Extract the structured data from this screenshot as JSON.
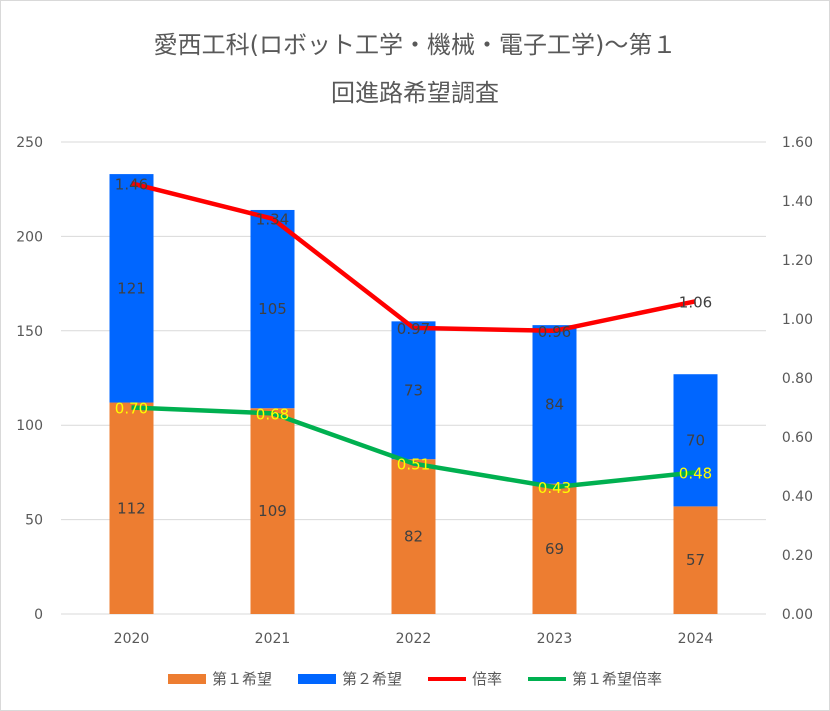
{
  "chart_data": {
    "type": "bar+line",
    "title_line1": "愛西工科(ロボット工学・機械・電子工学)～第１",
    "title_line2": "回進路希望調査",
    "categories": [
      "2020",
      "2021",
      "2022",
      "2023",
      "2024"
    ],
    "bar_series": [
      {
        "name": "第１希望",
        "color": "#ED7D31",
        "values": [
          112,
          109,
          82,
          69,
          57
        ]
      },
      {
        "name": "第２希望",
        "color": "#0066FF",
        "values": [
          121,
          105,
          73,
          84,
          70
        ]
      }
    ],
    "line_series": [
      {
        "name": "倍率",
        "color": "#FF0000",
        "label_color": "#404040",
        "values": [
          1.46,
          1.34,
          0.97,
          0.96,
          1.06
        ]
      },
      {
        "name": "第１希望倍率",
        "color": "#00B050",
        "label_color": "#FFFF00",
        "values": [
          0.7,
          0.68,
          0.51,
          0.43,
          0.48
        ]
      }
    ],
    "ylim": [
      0,
      250
    ],
    "yticks": [
      "0",
      "50",
      "100",
      "150",
      "200",
      "250"
    ],
    "y2lim": [
      0,
      1.6
    ],
    "y2ticks": [
      "0.00",
      "0.20",
      "0.40",
      "0.60",
      "0.80",
      "1.00",
      "1.20",
      "1.40",
      "1.60"
    ],
    "grid": true,
    "legend_position": "bottom"
  }
}
